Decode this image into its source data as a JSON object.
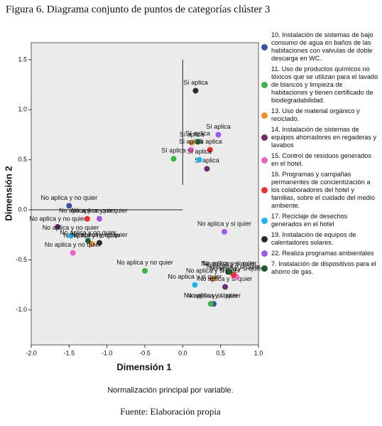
{
  "chart_data": {
    "type": "scatter",
    "title": "Figura 6. Diagrama conjunto de puntos de categorías clúster 3",
    "x_label": "Dimensión 1",
    "y_label": "Dimensión 2",
    "note": "Normalización principal por variable.",
    "source": "Fuente: Elaboración propia",
    "xlim": [
      -2.0,
      1.0
    ],
    "ylim": [
      -1.35,
      1.67
    ],
    "xticks": [
      {
        "value": -2.0,
        "label": "-2.0"
      },
      -1.5,
      {
        "value": -1.0,
        "label": "-1.0"
      },
      -0.5,
      {
        "value": 0,
        "label": "0.0"
      },
      0.5,
      {
        "value": 1.0,
        "label": "1.0"
      }
    ],
    "yticks": [
      1.5,
      {
        "value": 1.0,
        "label": "1.0"
      },
      0.5,
      {
        "value": 0,
        "label": "0.0"
      },
      -0.5,
      {
        "value": -1.0,
        "label": "-1.0"
      }
    ],
    "series": [
      {
        "name": "10. Instalación de sistemas de bajo consumo de agua en baños de las habitaciones con valvulas de doble descarga en WC.",
        "color": "#3a4fa4",
        "x": [
          -1.5,
          0.41
        ],
        "values": [
          0.04,
          -0.94
        ],
        "labels": [
          "No aplica y no quier",
          "No aplica y si quier"
        ]
      },
      {
        "name": "11. Uso de productos químicos no tóxicos que se utilizan para el lavado de blancos y limpieza de habitaciones y tienen certificado de biodegradabilidad.",
        "color": "#3cb44b",
        "x": [
          -0.12,
          -0.5,
          0.37
        ],
        "values": [
          0.51,
          -0.61,
          -0.94
        ],
        "labels": [
          "Sí aplica",
          "No aplica y no quier",
          "No aplica y si quier"
        ]
      },
      {
        "name": "13. Uso de material orgánico y reciclado.",
        "color": "#f0922b",
        "x": [
          0.12,
          -1.2,
          0.4
        ],
        "values": [
          0.67,
          -0.34,
          -0.69
        ],
        "labels": [
          "Sí aplica",
          "No aplica y no quier",
          "No aplica y si quier"
        ]
      },
      {
        "name": "14. Instalación de sistemas de equipos ahorradores en regaderas y lavabos",
        "color": "#6b2d6b",
        "x": [
          0.32,
          -1.65,
          0.56
        ],
        "values": [
          0.41,
          -0.17,
          -0.77
        ],
        "labels": [
          "Sí aplica",
          "No aplica y no quier",
          "No aplica y si quier"
        ]
      },
      {
        "name": "15. Control de residuos generados en el hotel.",
        "color": "#f060c8",
        "x": [
          0.11,
          -1.45,
          0.71
        ],
        "values": [
          0.6,
          -0.43,
          -0.67
        ],
        "labels": [
          "Si aplica",
          "No aplica y no quier",
          "No aplica y si quier"
        ]
      },
      {
        "name": "16. Programas y campañas permanentes de concientización a los colaboradores del hotel y familias, sobre el cuidado del medio ambiente.",
        "color": "#e8322e",
        "x": [
          0.36,
          -1.26,
          0.67
        ],
        "values": [
          0.6,
          -0.09,
          -0.65
        ],
        "labels": [
          "Si aplica",
          "No aplica y no quier",
          "No aplica y si quier"
        ]
      },
      {
        "name": "17. Reciclaje de desechos generados en el hotel",
        "color": "#1fb4f0",
        "x": [
          0.22,
          -1.48,
          0.16
        ],
        "values": [
          0.5,
          -0.26,
          -0.75
        ],
        "labels": [
          "Sí aplica",
          "No aplica y no quier",
          "No aplica y si quier"
        ]
      },
      {
        "name": "19. Instalación de equipos de calentadores solares.",
        "color": "#2b2b2b",
        "x": [
          0.17,
          -1.1,
          0.6
        ],
        "values": [
          1.19,
          -0.33,
          -0.62
        ],
        "labels": [
          "Sí aplica",
          "No aplica y no quier",
          "No aplica y si quier"
        ]
      },
      {
        "name": "22. Realiza programas ambientales",
        "color": "#9b59f0",
        "x": [
          0.47,
          -1.1,
          0.55
        ],
        "values": [
          0.75,
          -0.09,
          -0.22
        ],
        "labels": [
          "Sí aplica",
          "No aplica y no quier",
          "No aplica y si quier"
        ]
      },
      {
        "name": "7. Instalación de dispositivos para el ahorro de gas.",
        "color": "#1e5a2e",
        "x": [
          0.2,
          -1.25,
          0.62
        ],
        "values": [
          0.68,
          -0.31,
          -0.62
        ],
        "labels": [
          "Sí aplica",
          "No aplica y no quier",
          "No aplica y si quier"
        ]
      }
    ]
  }
}
